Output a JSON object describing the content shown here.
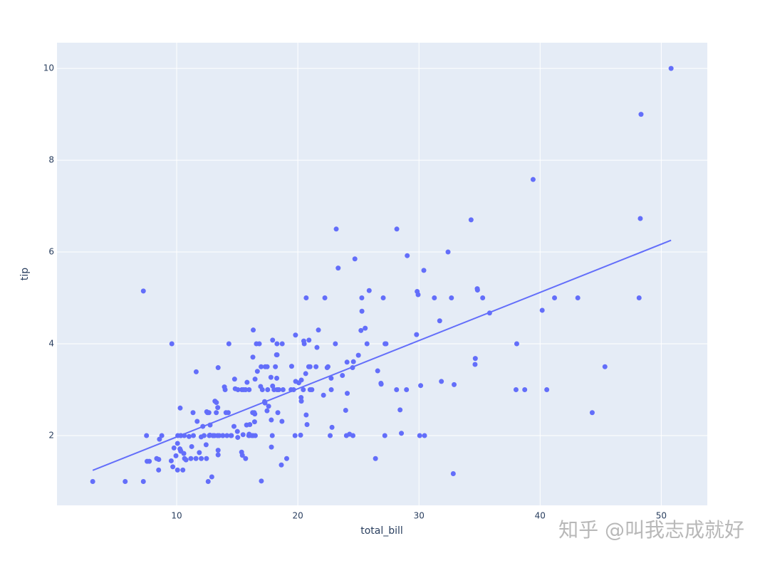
{
  "chart_data": {
    "type": "scatter",
    "x_label": "total_bill",
    "y_label": "tip",
    "watermark": "知乎 @叫我志成就好",
    "color": "#636efa",
    "background": "#e5ecf6",
    "grid": true,
    "xlim": [
      0.12,
      53.8
    ],
    "ylim": [
      0.48,
      10.56
    ],
    "xticks": [
      10,
      20,
      30,
      40,
      50
    ],
    "yticks": [
      2,
      4,
      6,
      8,
      10
    ],
    "x": [
      16.99,
      10.34,
      21.01,
      23.68,
      24.59,
      25.29,
      8.77,
      26.88,
      15.04,
      14.78,
      10.27,
      35.26,
      15.42,
      18.43,
      14.83,
      21.58,
      10.33,
      16.29,
      16.97,
      20.65,
      17.92,
      20.29,
      15.77,
      39.42,
      19.82,
      17.81,
      13.37,
      12.69,
      21.7,
      19.65,
      9.55,
      18.35,
      15.06,
      20.69,
      17.78,
      24.06,
      16.31,
      16.93,
      18.69,
      31.27,
      16.04,
      17.46,
      13.94,
      9.68,
      30.4,
      18.29,
      22.23,
      32.4,
      28.55,
      18.04,
      12.54,
      10.29,
      34.81,
      9.94,
      25.56,
      19.49,
      38.01,
      26.41,
      11.24,
      48.27,
      20.29,
      13.81,
      11.02,
      18.29,
      17.59,
      20.08,
      16.45,
      3.07,
      20.23,
      15.01,
      12.02,
      17.07,
      26.86,
      25.28,
      14.73,
      10.51,
      17.92,
      27.2,
      22.76,
      17.29,
      19.44,
      16.66,
      10.07,
      32.68,
      15.98,
      34.83,
      13.03,
      18.28,
      24.71,
      21.16,
      28.97,
      22.49,
      5.75,
      16.32,
      22.75,
      40.17,
      27.28,
      12.03,
      21.01,
      12.46,
      11.35,
      15.38,
      44.3,
      22.42,
      20.92,
      15.36,
      20.49,
      25.21,
      18.24,
      14.31,
      14.0,
      7.25,
      38.07,
      23.95,
      25.71,
      17.31,
      29.93,
      10.65,
      12.43,
      24.08,
      11.69,
      13.42,
      14.26,
      15.95,
      12.48,
      29.8,
      8.52,
      14.52,
      11.38,
      22.82,
      19.08,
      20.27,
      11.17,
      12.26,
      18.26,
      8.51,
      10.33,
      14.15,
      16.0,
      13.16,
      17.47,
      34.3,
      41.19,
      27.05,
      16.43,
      8.35,
      18.64,
      11.87,
      9.78,
      7.51,
      14.07,
      13.13,
      17.26,
      24.55,
      19.77,
      29.85,
      48.17,
      25.0,
      13.39,
      16.49,
      21.5,
      12.66,
      16.21,
      13.81,
      17.51,
      24.52,
      20.76,
      31.71,
      10.59,
      10.63,
      50.81,
      15.81,
      7.25,
      31.85,
      16.82,
      32.9,
      17.89,
      14.48,
      9.6,
      34.63,
      34.65,
      23.33,
      45.35,
      23.17,
      40.55,
      20.69,
      20.9,
      30.46,
      18.15,
      23.1,
      15.69,
      19.81,
      28.44,
      15.48,
      16.58,
      7.56,
      10.34,
      43.11,
      13.0,
      13.51,
      18.71,
      12.74,
      13.0,
      16.4,
      20.53,
      16.47,
      26.59,
      38.73,
      24.27,
      12.76,
      30.06,
      25.89,
      48.33,
      13.27,
      28.17,
      12.9,
      28.15,
      11.59,
      7.74,
      30.14,
      12.16,
      13.42,
      8.58,
      15.98,
      13.42,
      16.27,
      10.09,
      20.45,
      13.28,
      22.12,
      24.01,
      15.69,
      11.61,
      10.77,
      15.53,
      10.07,
      12.6,
      32.83,
      35.83,
      29.03,
      27.18,
      22.67,
      17.82,
      18.78
    ],
    "values": [
      1.01,
      1.66,
      3.5,
      3.31,
      3.61,
      4.71,
      2.0,
      3.12,
      1.96,
      3.23,
      1.71,
      5.0,
      1.57,
      3.0,
      3.02,
      3.92,
      1.67,
      3.71,
      3.5,
      3.35,
      4.08,
      2.75,
      2.23,
      7.58,
      3.18,
      2.34,
      2.0,
      2.0,
      4.3,
      3.0,
      1.45,
      2.5,
      3.0,
      2.45,
      3.27,
      3.6,
      2.0,
      3.07,
      2.31,
      5.0,
      2.24,
      2.54,
      3.06,
      1.32,
      5.6,
      3.0,
      5.0,
      6.0,
      2.05,
      3.0,
      2.5,
      2.6,
      5.2,
      1.56,
      4.34,
      3.51,
      3.0,
      1.5,
      1.76,
      6.73,
      3.21,
      2.0,
      1.98,
      3.76,
      2.64,
      3.15,
      2.47,
      1.0,
      2.01,
      2.09,
      1.97,
      3.0,
      3.14,
      5.0,
      2.2,
      1.25,
      3.08,
      4.0,
      3.0,
      2.71,
      3.0,
      3.4,
      1.83,
      5.0,
      2.03,
      5.17,
      2.0,
      4.0,
      5.85,
      3.0,
      3.0,
      3.5,
      1.0,
      4.3,
      3.25,
      4.73,
      4.0,
      1.5,
      3.0,
      1.5,
      2.5,
      3.0,
      2.5,
      3.48,
      4.08,
      1.64,
      4.06,
      4.29,
      3.76,
      4.0,
      3.0,
      1.0,
      4.0,
      2.55,
      4.0,
      3.5,
      5.07,
      1.5,
      1.8,
      2.92,
      2.31,
      1.68,
      2.5,
      2.0,
      2.52,
      4.2,
      1.48,
      2.0,
      2.0,
      2.18,
      1.5,
      2.83,
      1.5,
      2.0,
      3.25,
      1.25,
      2.0,
      2.0,
      2.0,
      2.75,
      3.5,
      6.7,
      5.0,
      5.0,
      2.3,
      1.5,
      1.36,
      1.63,
      1.73,
      2.0,
      2.5,
      2.0,
      2.74,
      2.0,
      2.0,
      5.14,
      5.0,
      3.75,
      2.61,
      2.0,
      3.5,
      2.5,
      2.0,
      2.0,
      3.0,
      3.48,
      2.24,
      4.5,
      1.61,
      2.0,
      10.0,
      3.16,
      5.15,
      3.18,
      4.0,
      3.11,
      2.0,
      2.0,
      4.0,
      3.55,
      3.68,
      5.65,
      3.5,
      6.5,
      3.0,
      5.0,
      3.5,
      2.0,
      3.5,
      4.0,
      1.5,
      4.19,
      2.56,
      2.02,
      4.0,
      1.44,
      2.0,
      5.0,
      2.0,
      2.0,
      4.0,
      2.01,
      2.0,
      2.5,
      4.0,
      3.23,
      3.41,
      3.0,
      2.03,
      2.23,
      2.0,
      5.16,
      9.0,
      2.5,
      6.5,
      1.1,
      3.0,
      1.5,
      1.44,
      3.09,
      2.2,
      3.48,
      1.92,
      3.0,
      1.58,
      2.5,
      2.0,
      3.0,
      2.72,
      2.88,
      2.0,
      3.0,
      3.39,
      1.47,
      3.0,
      1.25,
      1.0,
      1.17,
      4.67,
      5.92,
      2.0,
      2.0,
      1.75,
      3.0
    ],
    "trendline": {
      "x": [
        3.07,
        50.81
      ],
      "values": [
        1.2426,
        6.2552
      ],
      "color": "#636efa"
    }
  }
}
